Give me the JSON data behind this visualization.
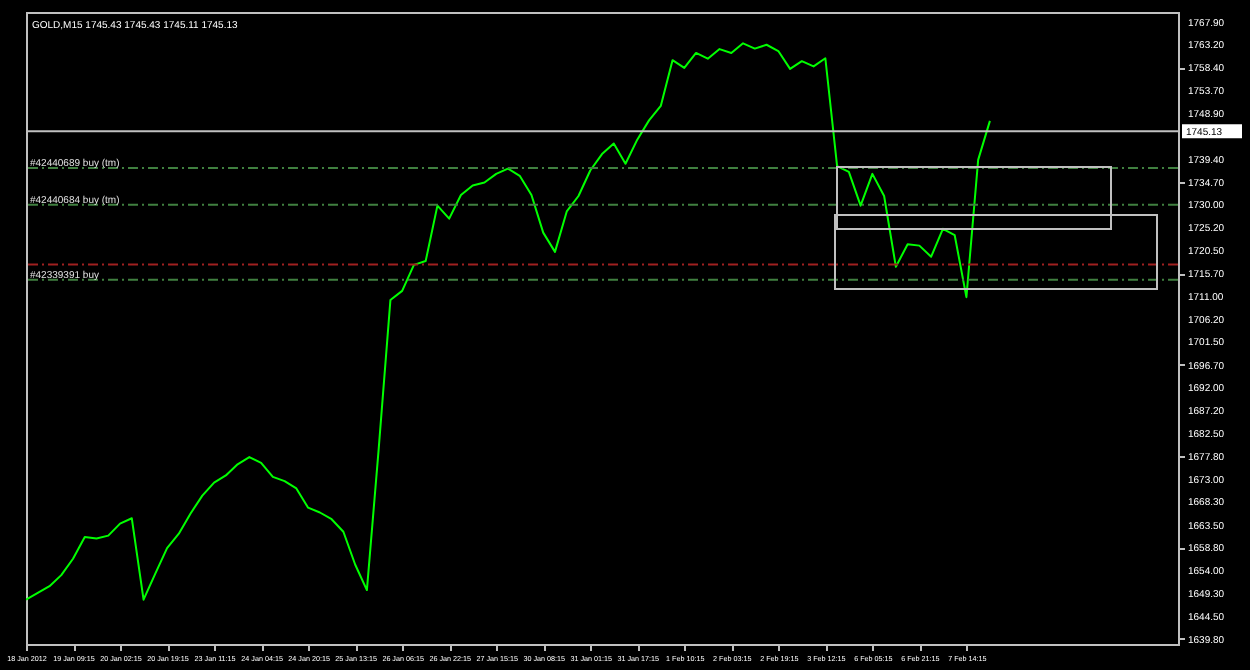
{
  "chart_data": {
    "type": "line",
    "title": "GOLD,M15  1745.43 1745.43 1745.11 1745.13",
    "categories": [
      "18 Jan 2012",
      null,
      null,
      null,
      "19 Jan 09:15",
      null,
      null,
      null,
      "20 Jan 02:15",
      null,
      null,
      null,
      "20 Jan 19:15",
      null,
      null,
      null,
      "23 Jan 11:15",
      null,
      null,
      null,
      "24 Jan 04:15",
      null,
      null,
      null,
      "24 Jan 20:15",
      null,
      null,
      null,
      "25 Jan 13:15",
      null,
      null,
      null,
      "26 Jan 06:15",
      null,
      null,
      null,
      "26 Jan 22:15",
      null,
      null,
      null,
      "27 Jan 15:15",
      null,
      null,
      null,
      "30 Jan 08:15",
      null,
      null,
      null,
      "31 Jan 01:15",
      null,
      null,
      null,
      "31 Jan 17:15",
      null,
      null,
      null,
      "1 Feb 10:15",
      null,
      null,
      null,
      "2 Feb 03:15",
      null,
      null,
      null,
      "2 Feb 19:15",
      null,
      null,
      null,
      "3 Feb 12:15",
      null,
      null,
      null,
      "6 Feb 05:15",
      null,
      null,
      null,
      "6 Feb 21:15",
      null,
      null,
      null,
      "7 Feb 14:15",
      null,
      null,
      null,
      null,
      null,
      null,
      null,
      null,
      null,
      null,
      null,
      null,
      null,
      null,
      null,
      null,
      null,
      null
    ],
    "ylim": [
      1638.7,
      1769.9
    ],
    "yticks": [
      {
        "value": 1767.9,
        "label": "1767.90"
      },
      {
        "value": 1763.2,
        "label": "1763.20"
      },
      {
        "value": 1758.4,
        "label": "1758.40"
      },
      {
        "value": 1753.7,
        "label": "1753.70"
      },
      {
        "value": 1748.9,
        "label": "1748.90"
      },
      {
        "value": 1739.4,
        "label": "1739.40"
      },
      {
        "value": 1734.7,
        "label": "1734.70"
      },
      {
        "value": 1730,
        "label": "1730.00"
      },
      {
        "value": 1725.2,
        "label": "1725.20"
      },
      {
        "value": 1720.5,
        "label": "1720.50"
      },
      {
        "value": 1715.7,
        "label": "1715.70"
      },
      {
        "value": 1711,
        "label": "1711.00"
      },
      {
        "value": 1706.2,
        "label": "1706.20"
      },
      {
        "value": 1701.5,
        "label": "1701.50"
      },
      {
        "value": 1696.7,
        "label": "1696.70"
      },
      {
        "value": 1692,
        "label": "1692.00"
      },
      {
        "value": 1687.2,
        "label": "1687.20"
      },
      {
        "value": 1682.5,
        "label": "1682.50"
      },
      {
        "value": 1677.8,
        "label": "1677.80"
      },
      {
        "value": 1673,
        "label": "1673.00"
      },
      {
        "value": 1668.3,
        "label": "1668.30"
      },
      {
        "value": 1663.5,
        "label": "1663.50"
      },
      {
        "value": 1658.8,
        "label": "1658.80"
      },
      {
        "value": 1654,
        "label": "1654.00"
      },
      {
        "value": 1649.3,
        "label": "1649.30"
      },
      {
        "value": 1644.5,
        "label": "1644.50"
      },
      {
        "value": 1639.8,
        "label": "1639.80"
      }
    ],
    "series": [
      {
        "color": "#00ff00",
        "values": [
          1647.9,
          1649.3,
          1650.7,
          1653.0,
          1656.4,
          1660.9,
          1660.6,
          1661.2,
          1663.7,
          1664.8,
          1647.9,
          1653.3,
          1658.6,
          1661.6,
          1665.8,
          1669.5,
          1672.2,
          1673.7,
          1676.0,
          1677.5,
          1676.3,
          1673.4,
          1672.5,
          1671.0,
          1667.0,
          1666.0,
          1664.6,
          1662.0,
          1655.2,
          1649.9,
          1679.1,
          1710.1,
          1712.0,
          1717.4,
          1718.2,
          1729.7,
          1727.0,
          1731.9,
          1733.9,
          1734.5,
          1736.3,
          1737.4,
          1735.9,
          1731.9,
          1724.1,
          1720.1,
          1728.5,
          1731.7,
          1737.0,
          1740.4,
          1742.6,
          1738.4,
          1743.4,
          1747.4,
          1750.4,
          1759.9,
          1758.3,
          1761.4,
          1760.2,
          1762.2,
          1761.4,
          1763.4,
          1762.3,
          1763.1,
          1761.8,
          1758.1,
          1759.7,
          1758.6,
          1760.3,
          1737.9,
          1736.7,
          1729.7,
          1736.3,
          1731.7,
          1717.0,
          1721.7,
          1721.4,
          1719.1,
          1724.9,
          1723.6,
          1710.7,
          1739.2,
          1747.3,
          null,
          null,
          null,
          null,
          null,
          null,
          null,
          null,
          null,
          null,
          null,
          null,
          null,
          null,
          null,
          null
        ]
      }
    ],
    "ref_lines": [
      {
        "axis": "y",
        "value": 1745.13,
        "label": "1745.13",
        "color": "#c0c0c0",
        "line_style": "solid"
      },
      {
        "axis": "y",
        "value": 1737.5,
        "label": "#42440689 buy (tm)",
        "color": "#408040",
        "line_style": "dashed"
      },
      {
        "axis": "y",
        "value": 1729.9,
        "label": "#42440684 buy (tm)",
        "color": "#408040",
        "line_style": "dashed"
      },
      {
        "axis": "y",
        "value": 1717.5,
        "color": "#a02020",
        "line_style": "dashed"
      },
      {
        "axis": "y",
        "value": 1714.3,
        "label": "#42339391 buy",
        "color": "#408040",
        "line_style": "dashed"
      }
    ]
  }
}
